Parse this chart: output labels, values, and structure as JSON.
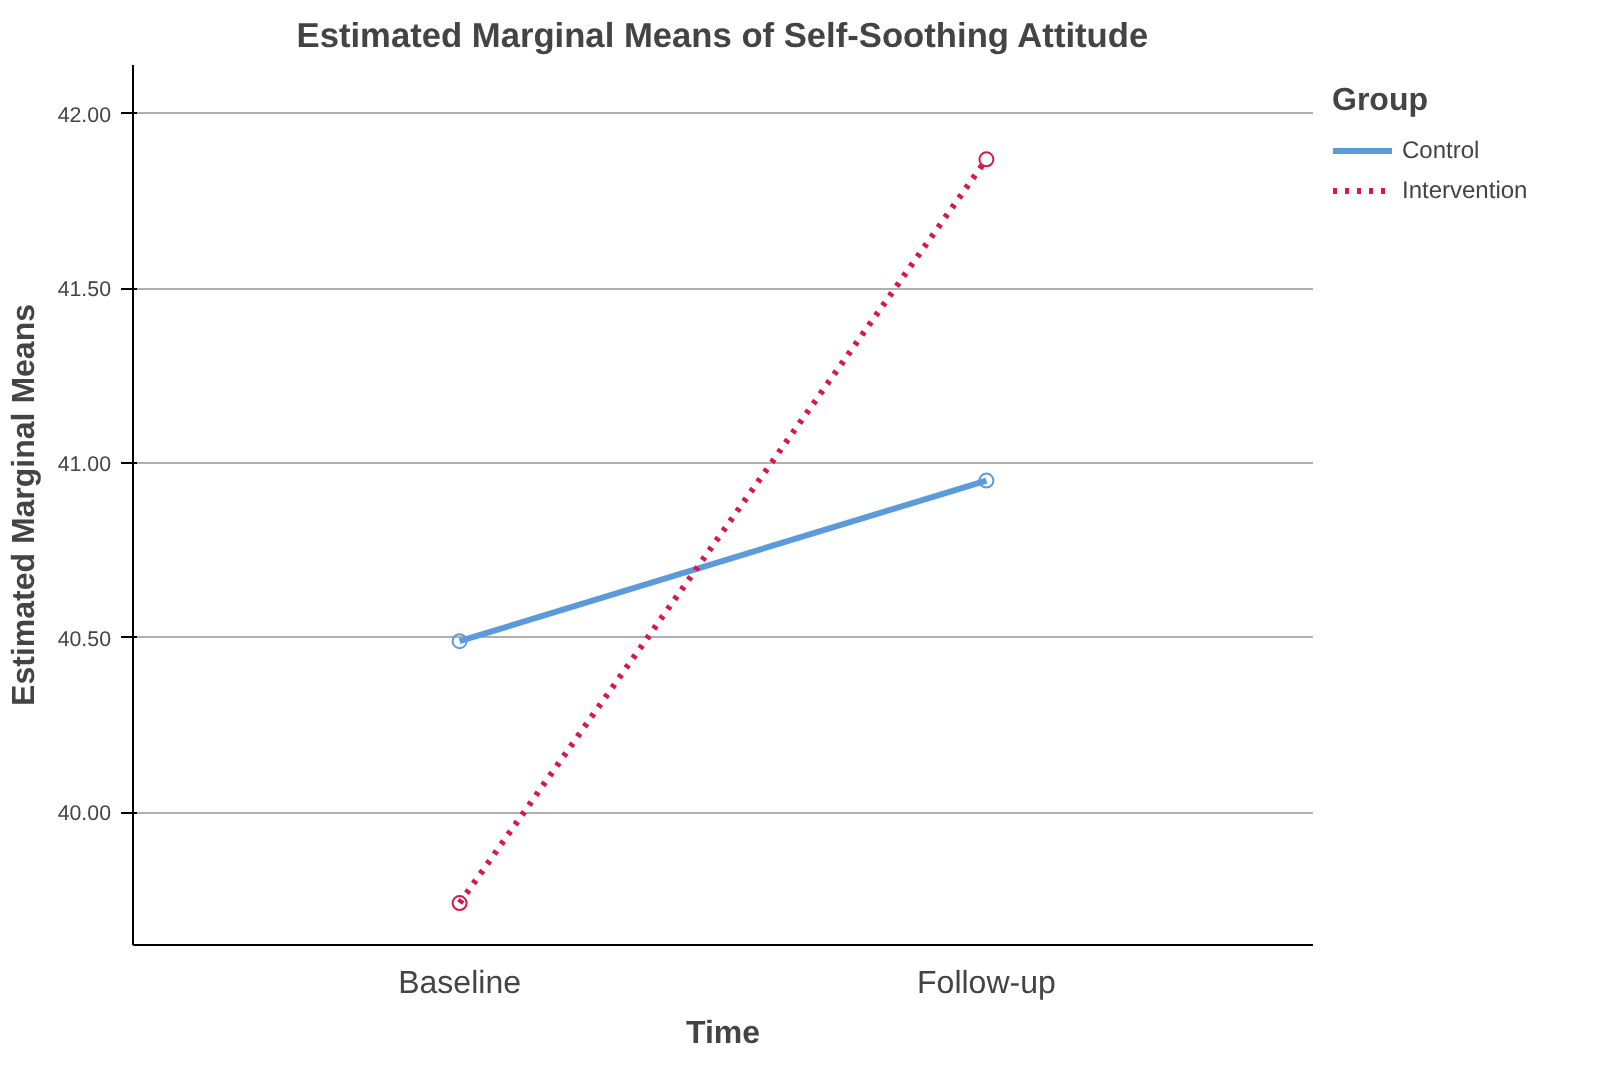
{
  "chart_data": {
    "type": "line",
    "title": "Estimated Marginal Means of Self-Soothing Attitude",
    "xlabel": "Time",
    "ylabel": "Estimated Marginal Means",
    "legend_title": "Group",
    "categories": [
      "Baseline",
      "Follow-up"
    ],
    "series": [
      {
        "name": "Control",
        "color": "#5b9bdc",
        "values": [
          40.49,
          40.95
        ],
        "line_style": "solid"
      },
      {
        "name": "Intervention",
        "color": "#d8174a",
        "values": [
          39.74,
          41.87
        ],
        "line_style": "dotted"
      }
    ],
    "ylim": [
      39.62,
      42.14
    ],
    "yticks": [
      {
        "value": 40,
        "label": "40.00"
      },
      {
        "value": 40.5,
        "label": "40.50"
      },
      {
        "value": 41,
        "label": "41.00"
      },
      {
        "value": 41.5,
        "label": "41.50"
      },
      {
        "value": 42,
        "label": "42.00"
      }
    ],
    "grid": "y",
    "legend": "right",
    "marker": "circle"
  }
}
